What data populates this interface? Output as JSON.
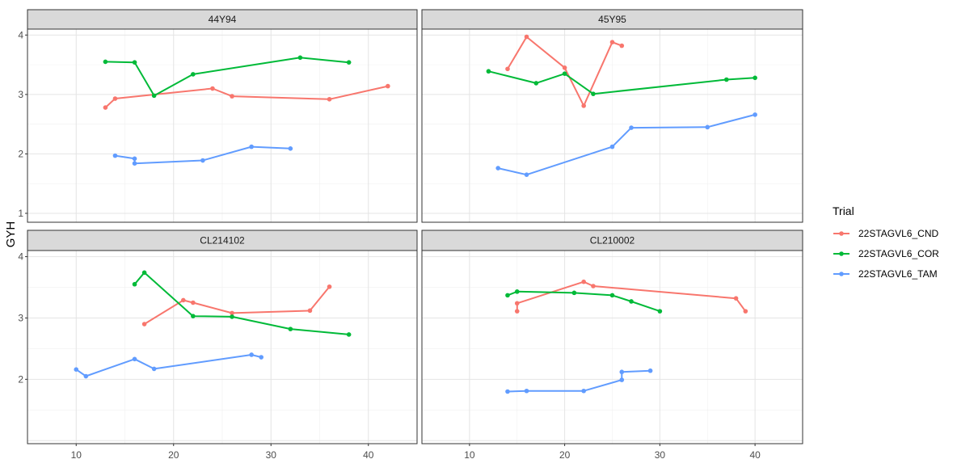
{
  "chart_data": {
    "type": "line",
    "ylabel": "GYH",
    "xlabel": "",
    "x_ticks": [
      10,
      20,
      30,
      40
    ],
    "y_ticks": [
      1,
      2,
      3,
      4
    ],
    "x_range": [
      5,
      45
    ],
    "legend": {
      "title": "Trial",
      "placement": "right",
      "entries": [
        {
          "name": "22STAGVL6_CND",
          "color": "#F8766D"
        },
        {
          "name": "22STAGVL6_COR",
          "color": "#00BA38"
        },
        {
          "name": "22STAGVL6_TAM",
          "color": "#619CFF"
        }
      ]
    },
    "panels": [
      {
        "title": "44Y94",
        "ylim": [
          0.85,
          4.1
        ],
        "show_y_ticks": [
          1,
          2,
          3,
          4
        ],
        "series": [
          {
            "name": "22STAGVL6_CND",
            "x": [
              13,
              14,
              24,
              26,
              36,
              42
            ],
            "y": [
              2.78,
              2.93,
              3.1,
              2.97,
              2.92,
              3.14
            ]
          },
          {
            "name": "22STAGVL6_COR",
            "x": [
              13,
              16,
              18,
              22,
              33,
              38
            ],
            "y": [
              3.55,
              3.54,
              2.98,
              3.34,
              3.62,
              3.54
            ]
          },
          {
            "name": "22STAGVL6_TAM",
            "x": [
              14,
              16,
              16,
              23,
              28,
              32
            ],
            "y": [
              1.97,
              1.92,
              1.84,
              1.89,
              2.12,
              2.09
            ]
          }
        ]
      },
      {
        "title": "45Y95",
        "ylim": [
          0.85,
          4.1
        ],
        "show_y_ticks": [],
        "series": [
          {
            "name": "22STAGVL6_CND",
            "x": [
              14,
              16,
              20,
              22,
              25,
              26
            ],
            "y": [
              3.43,
              3.97,
              3.45,
              2.81,
              3.88,
              3.82
            ]
          },
          {
            "name": "22STAGVL6_COR",
            "x": [
              12,
              17,
              20,
              23,
              37,
              40
            ],
            "y": [
              3.39,
              3.19,
              3.35,
              3.01,
              3.25,
              3.28
            ]
          },
          {
            "name": "22STAGVL6_TAM",
            "x": [
              13,
              16,
              25,
              27,
              35,
              40
            ],
            "y": [
              1.76,
              1.65,
              2.12,
              2.44,
              2.45,
              2.66
            ]
          }
        ]
      },
      {
        "title": "CL214102",
        "ylim": [
          0.95,
          4.1
        ],
        "show_y_ticks": [
          2,
          3,
          4
        ],
        "series": [
          {
            "name": "22STAGVL6_CND",
            "x": [
              17,
              21,
              22,
              26,
              34,
              36
            ],
            "y": [
              2.9,
              3.29,
              3.25,
              3.08,
              3.12,
              3.51
            ]
          },
          {
            "name": "22STAGVL6_COR",
            "x": [
              16,
              17,
              22,
              26,
              32,
              38
            ],
            "y": [
              3.55,
              3.74,
              3.03,
              3.02,
              2.82,
              2.73
            ]
          },
          {
            "name": "22STAGVL6_TAM",
            "x": [
              10,
              11,
              16,
              18,
              28,
              29
            ],
            "y": [
              2.16,
              2.05,
              2.33,
              2.17,
              2.4,
              2.36
            ]
          }
        ]
      },
      {
        "title": "CL210002",
        "ylim": [
          0.95,
          4.1
        ],
        "show_y_ticks": [],
        "series": [
          {
            "name": "22STAGVL6_CND",
            "x": [
              15,
              15,
              22,
              23,
              38,
              39
            ],
            "y": [
              3.11,
              3.24,
              3.59,
              3.52,
              3.32,
              3.11
            ]
          },
          {
            "name": "22STAGVL6_COR",
            "x": [
              14,
              15,
              21,
              25,
              27,
              30
            ],
            "y": [
              3.37,
              3.43,
              3.41,
              3.37,
              3.27,
              3.11
            ]
          },
          {
            "name": "22STAGVL6_TAM",
            "x": [
              14,
              16,
              22,
              26,
              26,
              29
            ],
            "y": [
              1.8,
              1.81,
              1.81,
              1.99,
              2.12,
              2.14
            ]
          }
        ]
      }
    ]
  }
}
